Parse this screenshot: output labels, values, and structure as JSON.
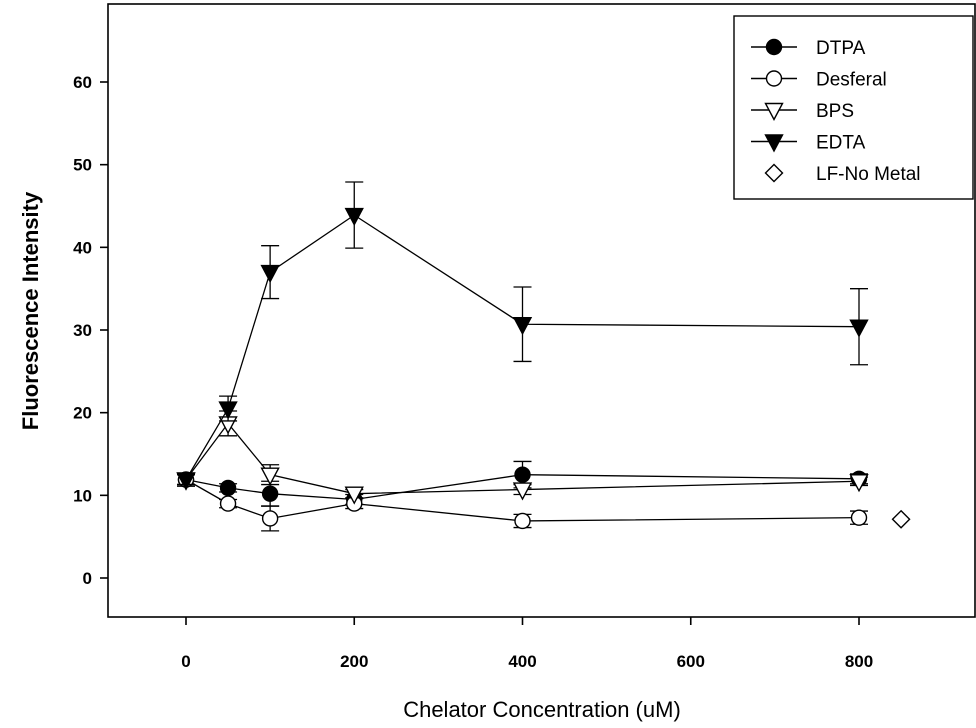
{
  "chart_data": {
    "type": "line",
    "xlabel": "Chelator Concentration (uM)",
    "ylabel": "Fluorescence Intensity",
    "xlim": [
      -80,
      940
    ],
    "ylim": [
      -5,
      68
    ],
    "xticks": [
      0,
      200,
      400,
      600,
      800
    ],
    "yticks": [
      0,
      10,
      20,
      30,
      40,
      50,
      60
    ],
    "grid": false,
    "legend_position": "top-right",
    "series": [
      {
        "name": "DTPA",
        "marker": "filled-circle",
        "connected": true,
        "x": [
          0,
          50,
          100,
          200,
          400,
          800
        ],
        "y": [
          11.9,
          10.9,
          10.2,
          9.5,
          12.5,
          12.0
        ],
        "error": [
          0.8,
          0.5,
          1.5,
          0.6,
          1.6,
          0.6
        ]
      },
      {
        "name": "Desferal",
        "marker": "open-circle",
        "connected": true,
        "x": [
          0,
          50,
          100,
          200,
          400,
          800
        ],
        "y": [
          11.9,
          9.0,
          7.2,
          9.0,
          6.9,
          7.3
        ],
        "error": [
          0.6,
          0.5,
          1.5,
          0.6,
          0.8,
          0.8
        ]
      },
      {
        "name": "BPS",
        "marker": "open-triangle-down",
        "connected": true,
        "x": [
          0,
          50,
          100,
          200,
          400,
          800
        ],
        "y": [
          11.9,
          18.7,
          12.5,
          10.2,
          10.7,
          11.7
        ],
        "error": [
          0.6,
          1.5,
          1.2,
          0.5,
          0.6,
          0.5
        ]
      },
      {
        "name": "EDTA",
        "marker": "filled-triangle-down",
        "connected": true,
        "x": [
          0,
          50,
          100,
          200,
          400,
          800
        ],
        "y": [
          11.9,
          20.5,
          37.0,
          43.9,
          30.7,
          30.4
        ],
        "error": [
          0.6,
          1.5,
          3.2,
          4.0,
          4.5,
          4.6
        ]
      },
      {
        "name": "LF-No Metal",
        "marker": "open-diamond",
        "connected": false,
        "x": [
          850
        ],
        "y": [
          7.1
        ],
        "error": [
          0
        ]
      }
    ]
  }
}
